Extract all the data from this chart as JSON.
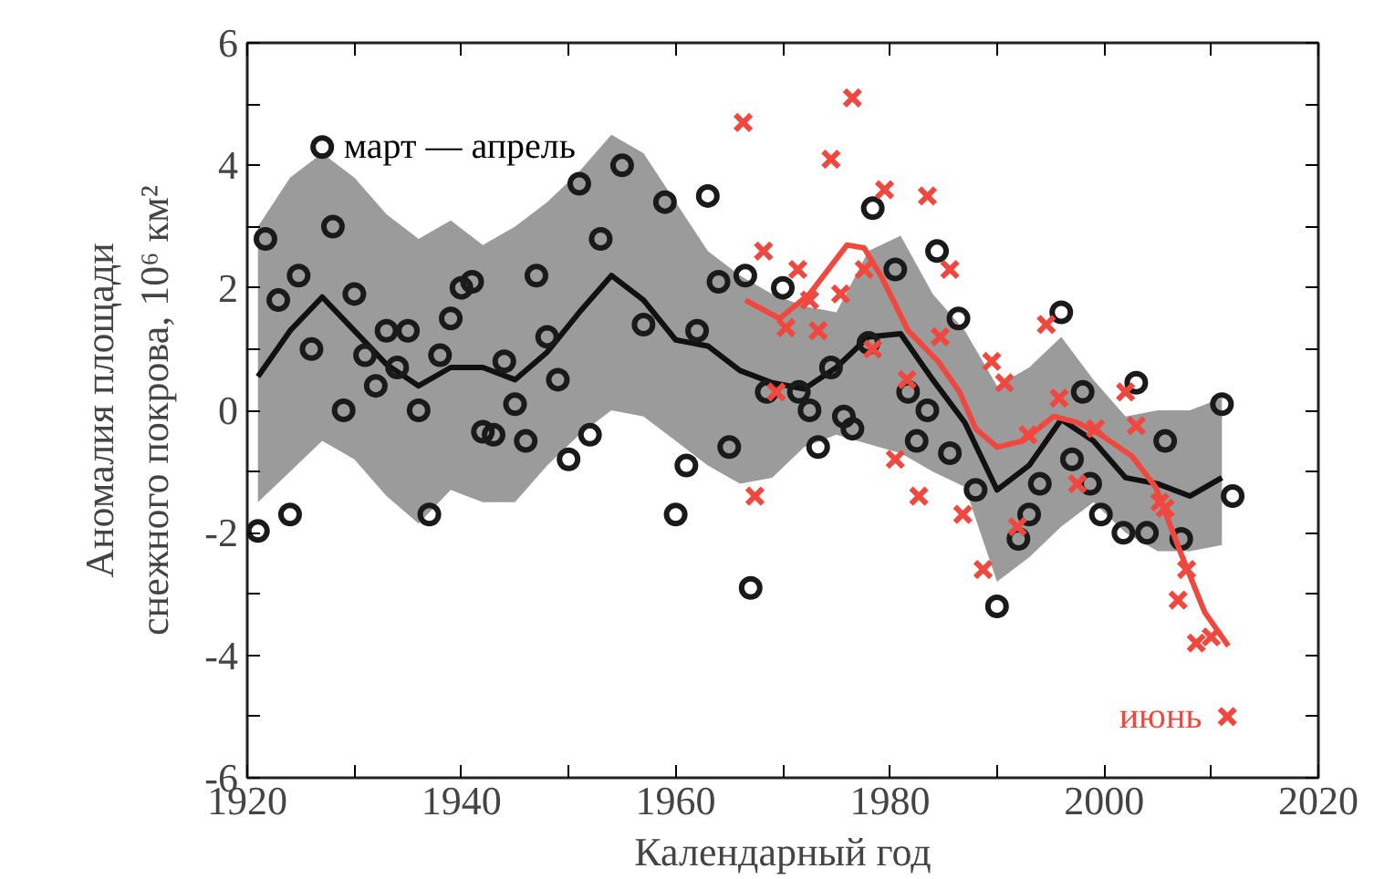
{
  "chart_data": {
    "type": "scatter",
    "xlabel": "Календарный год",
    "ylabel": "Аномалия площади\nснежного покрова, 10⁶ км²",
    "xlim": [
      1920,
      2020
    ],
    "ylim": [
      -6,
      6
    ],
    "xticks": [
      1920,
      {
        "value": 1930,
        "label": null
      },
      1940,
      {
        "value": 1950,
        "label": null
      },
      1960,
      {
        "value": 1970,
        "label": null
      },
      1980,
      {
        "value": 1990,
        "label": null
      },
      2000,
      {
        "value": 2010,
        "label": null
      },
      2020
    ],
    "yticks": [
      -6,
      {
        "value": -5,
        "label": null
      },
      -4,
      {
        "value": -3,
        "label": null
      },
      -2,
      {
        "value": -1,
        "label": null
      },
      0,
      {
        "value": 1,
        "label": null
      },
      2,
      {
        "value": 3,
        "label": null
      },
      4,
      {
        "value": 5,
        "label": null
      },
      6
    ],
    "grid": false,
    "series": [
      {
        "type": "line",
        "color": "#111111",
        "marker": "none",
        "line_style": "solid",
        "x": [
          1921,
          1924,
          1927,
          1930,
          1933,
          1936,
          1939,
          1942,
          1945,
          1948,
          1951,
          1954,
          1957,
          1960,
          1963,
          1966,
          1969,
          1972,
          1975,
          1978,
          1981,
          1984,
          1987,
          1990,
          1993,
          1996,
          1999,
          2002,
          2005,
          2008,
          2011
        ],
        "values": [
          0.55,
          1.3,
          1.85,
          1.3,
          0.75,
          0.4,
          0.7,
          0.7,
          0.5,
          0.95,
          1.6,
          2.2,
          1.8,
          1.15,
          1.05,
          0.65,
          0.45,
          0.35,
          0.7,
          1.2,
          1.25,
          0.5,
          -0.2,
          -1.3,
          -0.9,
          -0.15,
          -0.5,
          -1.1,
          -1.2,
          -1.4,
          -1.1
        ],
        "upper": [
          3.0,
          3.8,
          4.2,
          3.8,
          3.2,
          2.8,
          3.1,
          2.7,
          3.0,
          3.4,
          3.9,
          4.5,
          4.2,
          3.4,
          2.6,
          2.2,
          1.9,
          1.7,
          1.6,
          2.6,
          2.85,
          1.9,
          1.3,
          0.4,
          0.7,
          1.2,
          0.5,
          -0.1,
          0.0,
          0.0,
          0.2
        ],
        "lower": [
          -1.5,
          -1.0,
          -0.5,
          -0.8,
          -1.4,
          -1.85,
          -1.3,
          -1.5,
          -1.5,
          -0.9,
          -0.4,
          0.0,
          -0.1,
          -0.5,
          -0.9,
          -1.2,
          -1.1,
          -0.6,
          -0.4,
          -0.55,
          -0.7,
          -1.0,
          -1.25,
          -2.8,
          -2.4,
          -1.9,
          -1.5,
          -2.0,
          -2.3,
          -2.3,
          -2.2
        ]
      },
      {
        "name": "март — апрель",
        "color": "#1a1a1a",
        "marker": "circle",
        "x": [
          1921,
          1924,
          1921.7,
          1922.9,
          1924.8,
          1926,
          1927,
          1928,
          1929,
          1930,
          1931,
          1932,
          1933,
          1935,
          1934,
          1936,
          1937,
          1938,
          1939,
          1940,
          1941,
          1942,
          1943,
          1944,
          1945,
          1946,
          1947,
          1948,
          1949,
          1950,
          1952,
          1951,
          1953,
          1955,
          1959,
          1963,
          1957,
          1962,
          1960,
          1961,
          1965,
          1964,
          1966.5,
          1967,
          1970,
          1968.5,
          1971.5,
          1972.5,
          1973.3,
          1974.5,
          1975.7,
          1976.5,
          1978.4,
          1980.5,
          1978,
          1981.7,
          1983.5,
          1982.5,
          1984.4,
          1986.4,
          1985.6,
          1988,
          1990,
          1992,
          1993,
          1994,
          1996,
          1997,
          1998,
          1998.7,
          1999.7,
          2001.8,
          2003,
          2004,
          2005.7,
          2007.2,
          2011,
          2012
        ],
        "values": [
          -1.97,
          -1.7,
          2.8,
          1.8,
          2.2,
          1.0,
          4.3,
          3.0,
          0.0,
          1.9,
          0.9,
          0.4,
          1.3,
          1.3,
          0.7,
          0.0,
          -1.7,
          0.9,
          1.5,
          2.0,
          2.1,
          -0.35,
          -0.4,
          0.8,
          0.1,
          -0.5,
          2.2,
          1.2,
          0.5,
          -0.8,
          -0.4,
          3.7,
          2.8,
          4.0,
          3.4,
          3.5,
          1.4,
          1.3,
          -1.7,
          -0.9,
          -0.6,
          2.1,
          2.2,
          -2.9,
          2.0,
          0.3,
          0.3,
          0.0,
          -0.6,
          0.7,
          -0.1,
          -0.3,
          3.3,
          2.3,
          1.1,
          0.3,
          0.0,
          -0.5,
          2.6,
          1.5,
          -0.7,
          -1.3,
          -3.2,
          -2.1,
          -1.7,
          -1.2,
          1.6,
          -0.8,
          0.3,
          -1.2,
          -1.7,
          -2.0,
          0.45,
          -2.0,
          -0.5,
          -2.1,
          0.1,
          -1.4
        ]
      },
      {
        "type": "line",
        "color": "#f0483e",
        "marker": "none",
        "line_style": "solid",
        "x": [
          1966.5,
          1969.7,
          1972.5,
          1976,
          1977.6,
          1979.3,
          1981.7,
          1984.5,
          1986.5,
          1988,
          1990,
          1992.4,
          1995.3,
          1997.5,
          1999.7,
          2002.6,
          2004.8,
          2007.2,
          2009.4,
          2011.6
        ],
        "values": [
          1.8,
          1.5,
          1.9,
          2.7,
          2.65,
          2.15,
          1.3,
          0.8,
          0.3,
          -0.3,
          -0.6,
          -0.5,
          -0.1,
          -0.2,
          -0.4,
          -0.75,
          -1.25,
          -2.35,
          -3.3,
          -3.85
        ]
      },
      {
        "name": "июнь",
        "color": "#f0483e",
        "marker": "cross",
        "x": [
          1966.3,
          1967.4,
          1968.2,
          1970.3,
          1969.4,
          1971.4,
          1973.3,
          1972.5,
          1974.5,
          1975.4,
          1976.5,
          1977.6,
          1978.4,
          1979.5,
          1981.6,
          1980.5,
          1983.5,
          1982.7,
          1985.6,
          1984.7,
          1986.8,
          1988.7,
          1989.5,
          1990.7,
          1991.9,
          1992.9,
          1994.6,
          1995.8,
          1997.5,
          1999.2,
          2002,
          2003,
          2005.2,
          2005.7,
          2006.9,
          2007.7,
          2008.6,
          2010
        ],
        "values": [
          4.7,
          -1.4,
          2.6,
          1.35,
          0.3,
          2.3,
          1.3,
          1.8,
          4.1,
          1.9,
          5.1,
          2.3,
          1.0,
          3.6,
          0.5,
          -0.8,
          3.5,
          -1.4,
          2.3,
          1.2,
          -1.7,
          -2.6,
          0.8,
          0.45,
          -1.9,
          -0.4,
          1.4,
          0.2,
          -1.2,
          -0.3,
          0.3,
          -0.25,
          -1.5,
          -1.6,
          -3.1,
          -2.6,
          -3.8,
          -3.7
        ]
      }
    ]
  }
}
